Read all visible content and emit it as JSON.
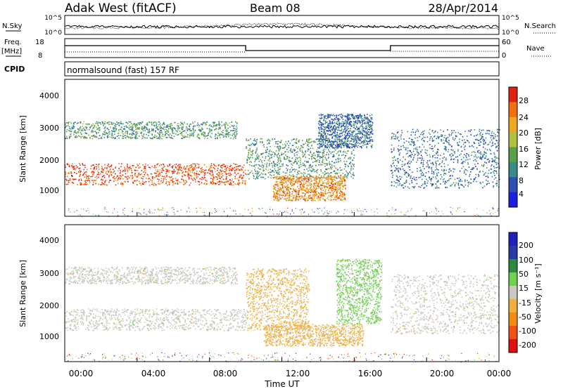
{
  "header": {
    "title": "Adak West (fitACF)",
    "beam": "Beam 08",
    "date": "28/Apr/2014"
  },
  "panels": {
    "nsky": {
      "left_label": "N.Sky",
      "right_label": "N.Search",
      "left_ticks": [
        "10^5",
        "10^0"
      ],
      "right_ticks": [
        "10^5",
        "10^0"
      ]
    },
    "freq": {
      "left_label_line1": "Freq.",
      "left_label_line2": "[MHz]",
      "left_ticks": [
        "18",
        "8"
      ],
      "right_label": "Nave",
      "right_ticks": [
        "60",
        "0"
      ]
    },
    "cpid": {
      "label": "CPID",
      "text": "normalsound (fast) 157 RF"
    },
    "power": {
      "ylabel": "Slant Range [km]",
      "yticks": [
        "1000",
        "2000",
        "3000",
        "4000"
      ],
      "colorbar_label": "Power [dB]",
      "colorbar_ticks": [
        "4",
        "8",
        "12",
        "16",
        "20",
        "24",
        "28"
      ],
      "colors": [
        "#1f1fe0",
        "#2e4fb0",
        "#3a8a8a",
        "#5aa04a",
        "#b0c040",
        "#f0a820",
        "#f07010",
        "#e02010"
      ]
    },
    "velocity": {
      "ylabel": "Slant Range [km]",
      "yticks": [
        "1000",
        "2000",
        "3000",
        "4000"
      ],
      "colorbar_label": "Velocity [m s⁻¹]",
      "colorbar_ticks": [
        "-200",
        "-100",
        "-50",
        "-15",
        "15",
        "50",
        "100",
        "200"
      ],
      "colors": [
        "#e01010",
        "#f05010",
        "#f08c10",
        "#f0b040",
        "#c8c8c0",
        "#70d050",
        "#2e8a40",
        "#2a3aa0",
        "#2020c0"
      ]
    }
  },
  "xaxis": {
    "label": "Time UT",
    "ticks": [
      "00:00",
      "04:00",
      "08:00",
      "12:00",
      "16:00",
      "20:00",
      "00:00"
    ]
  },
  "chart_data": [
    {
      "type": "heatmap",
      "quantity": "Power",
      "unit": "dB",
      "xlabel": "Time UT",
      "ylabel": "Slant Range [km]",
      "ylim": [
        180,
        4600
      ],
      "xlim": [
        0,
        24
      ],
      "colorbar_range": [
        0,
        32
      ],
      "features": [
        {
          "t": [
            0.0,
            10.0
          ],
          "range_km": [
            1200,
            1900
          ],
          "power_db": 28
        },
        {
          "t": [
            0.0,
            9.5
          ],
          "range_km": [
            2700,
            3250
          ],
          "power_db": 12
        },
        {
          "t": [
            10.0,
            16.0
          ],
          "range_km": [
            1400,
            2700
          ],
          "power_db": 12
        },
        {
          "t": [
            11.5,
            15.5
          ],
          "range_km": [
            700,
            1500
          ],
          "power_db": 24
        },
        {
          "t": [
            14.0,
            17.0
          ],
          "range_km": [
            2400,
            3500
          ],
          "power_db": 8
        },
        {
          "t": [
            18.0,
            24.0
          ],
          "range_km": [
            1100,
            3000
          ],
          "power_db": 8
        }
      ]
    },
    {
      "type": "heatmap",
      "quantity": "Velocity",
      "unit": "m s-1",
      "xlabel": "Time UT",
      "ylabel": "Slant Range [km]",
      "ylim": [
        180,
        4600
      ],
      "xlim": [
        0,
        24
      ],
      "colorbar_range": [
        -250,
        250
      ],
      "features": [
        {
          "t": [
            0.0,
            10.0
          ],
          "range_km": [
            1200,
            1900
          ],
          "velocity": 0
        },
        {
          "t": [
            0.0,
            9.5
          ],
          "range_km": [
            2700,
            3250
          ],
          "velocity": 0
        },
        {
          "t": [
            10.0,
            13.5
          ],
          "range_km": [
            1200,
            3200
          ],
          "velocity": -50
        },
        {
          "t": [
            11.0,
            16.5
          ],
          "range_km": [
            700,
            1400
          ],
          "velocity": -50
        },
        {
          "t": [
            15.0,
            17.5
          ],
          "range_km": [
            1400,
            3500
          ],
          "velocity": 50
        },
        {
          "t": [
            18.0,
            24.0
          ],
          "range_km": [
            1100,
            3000
          ],
          "velocity": 0
        }
      ]
    }
  ]
}
